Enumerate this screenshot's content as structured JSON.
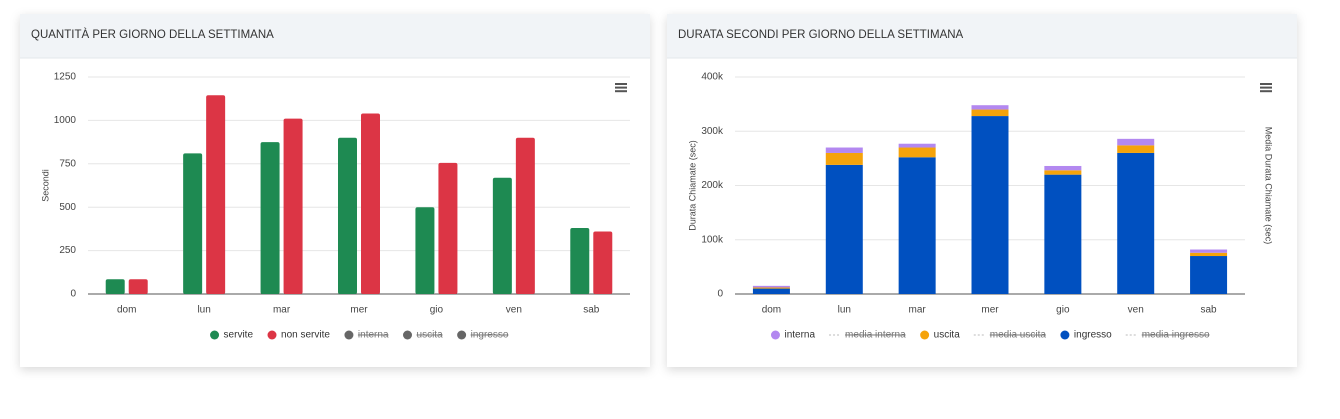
{
  "chart_data": [
    {
      "type": "bar",
      "title": "QUANTITÀ PER GIORNO DELLA SETTIMANA",
      "ylabel": "Secondi",
      "categories": [
        "dom",
        "lun",
        "mar",
        "mer",
        "gio",
        "ven",
        "sab"
      ],
      "series": [
        {
          "name": "servite",
          "color": "#1e8a52",
          "values": [
            85,
            810,
            875,
            900,
            500,
            670,
            380
          ]
        },
        {
          "name": "non servite",
          "color": "#dc3545",
          "values": [
            85,
            1145,
            1010,
            1040,
            755,
            900,
            360
          ]
        },
        {
          "name": "interna",
          "color": "#666666",
          "visible": false,
          "values": [
            null,
            null,
            null,
            null,
            null,
            null,
            null
          ]
        },
        {
          "name": "uscita",
          "color": "#666666",
          "visible": false,
          "values": [
            null,
            null,
            null,
            null,
            null,
            null,
            null
          ]
        },
        {
          "name": "ingresso",
          "color": "#666666",
          "visible": false,
          "values": [
            null,
            null,
            null,
            null,
            null,
            null,
            null
          ]
        }
      ],
      "ylim": [
        0,
        1250
      ],
      "yticks": [
        0,
        250,
        500,
        750,
        1000,
        1250
      ],
      "grid": true
    },
    {
      "type": "stacked_bar",
      "title": "DURATA SECONDI PER GIORNO DELLA SETTIMANA",
      "ylabel": "Durata Chiamate (sec)",
      "y2label": "Media Durata Chiamate (sec)",
      "categories": [
        "dom",
        "lun",
        "mar",
        "mer",
        "gio",
        "ven",
        "sab"
      ],
      "series": [
        {
          "name": "interna",
          "color": "#b388f0",
          "values": [
            3000,
            10000,
            7000,
            8000,
            8000,
            12000,
            6000
          ]
        },
        {
          "name": "media interna",
          "kind": "line",
          "axis": "y2",
          "color": "#999999",
          "visible": false,
          "values": [
            null,
            null,
            null,
            null,
            null,
            null,
            null
          ]
        },
        {
          "name": "uscita",
          "color": "#f5a30a",
          "values": [
            2000,
            22000,
            18000,
            12000,
            8000,
            14000,
            6000
          ]
        },
        {
          "name": "media uscita",
          "kind": "line",
          "axis": "y2",
          "color": "#999999",
          "visible": false,
          "values": [
            null,
            null,
            null,
            null,
            null,
            null,
            null
          ]
        },
        {
          "name": "ingresso",
          "color": "#0050c0",
          "values": [
            10000,
            238000,
            252000,
            328000,
            220000,
            260000,
            70000
          ]
        },
        {
          "name": "media ingresso",
          "kind": "line",
          "axis": "y2",
          "color": "#999999",
          "visible": false,
          "values": [
            null,
            null,
            null,
            null,
            null,
            null,
            null
          ]
        }
      ],
      "ylim": [
        0,
        400000
      ],
      "yticks": [
        0,
        {
          "value": 100000,
          "label": "100k"
        },
        {
          "value": 200000,
          "label": "200k"
        },
        {
          "value": 300000,
          "label": "300k"
        },
        {
          "value": 400000,
          "label": "400k"
        }
      ],
      "grid": true
    }
  ]
}
